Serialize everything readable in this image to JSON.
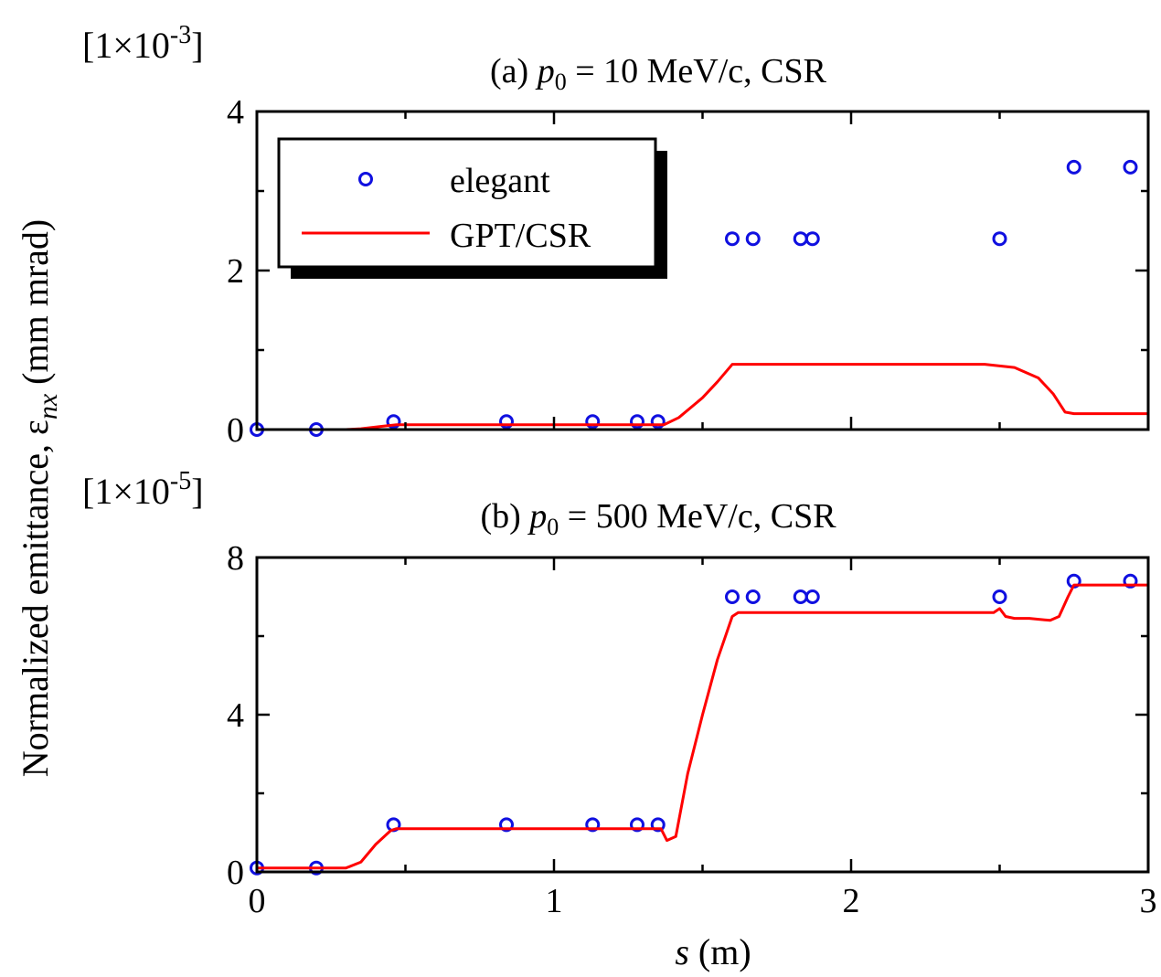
{
  "figure": {
    "ylabel_main": "Normalized emittance, ε",
    "ylabel_sub": "nx",
    "ylabel_unit": " (mm mrad)",
    "xlabel_var": "s",
    "xlabel_unit": " (m)"
  },
  "legend": {
    "elegant": "elegant",
    "gpt": "GPT/CSR"
  },
  "colors": {
    "elegant": "#1010e0",
    "gpt": "#ff0000",
    "axes": "#000000"
  },
  "panels": [
    {
      "scale_prefix": "[1×10",
      "scale_exp": "-3",
      "scale_suffix": "]",
      "title_prefix": "(a) ",
      "title_var": "p",
      "title_sub": "0",
      "title_rest": " = 10 MeV/c, CSR",
      "xticks": [
        "0",
        "1",
        "2",
        "3"
      ],
      "yticks": [
        "0",
        "2",
        "4"
      ]
    },
    {
      "scale_prefix": "[1×10",
      "scale_exp": "-5",
      "scale_suffix": "]",
      "title_prefix": "(b) ",
      "title_var": "p",
      "title_sub": "0",
      "title_rest": " = 500 MeV/c, CSR",
      "xticks": [
        "0",
        "1",
        "2",
        "3"
      ],
      "yticks": [
        "0",
        "4",
        "8"
      ]
    }
  ],
  "chart_data": [
    {
      "type": "line",
      "title": "(a) p0 = 10 MeV/c, CSR",
      "xlabel": "s (m)",
      "ylabel": "Normalized emittance, εnx (mm mrad)",
      "y_scale_factor": "1e-3",
      "xlim": [
        0,
        3
      ],
      "ylim": [
        0,
        4
      ],
      "legend_position": "top-left",
      "series": [
        {
          "name": "elegant",
          "style": "markers",
          "x": [
            0,
            0.2,
            0.46,
            0.84,
            1.13,
            1.28,
            1.35,
            1.6,
            1.67,
            1.83,
            1.87,
            2.5,
            2.75,
            2.94
          ],
          "y": [
            0.0,
            0.0,
            0.1,
            0.1,
            0.1,
            0.1,
            0.1,
            2.4,
            2.4,
            2.4,
            2.4,
            2.4,
            3.3,
            3.3
          ]
        },
        {
          "name": "GPT/CSR",
          "style": "line",
          "x": [
            0,
            0.3,
            0.35,
            0.42,
            0.47,
            1.37,
            1.42,
            1.5,
            1.55,
            1.6,
            2.45,
            2.55,
            2.63,
            2.68,
            2.72,
            2.75,
            3.0
          ],
          "y": [
            0.0,
            0.0,
            0.01,
            0.04,
            0.06,
            0.06,
            0.15,
            0.4,
            0.6,
            0.82,
            0.82,
            0.78,
            0.65,
            0.45,
            0.22,
            0.2,
            0.2
          ]
        }
      ]
    },
    {
      "type": "line",
      "title": "(b) p0 = 500 MeV/c, CSR",
      "xlabel": "s (m)",
      "ylabel": "Normalized emittance, εnx (mm mrad)",
      "y_scale_factor": "1e-5",
      "xlim": [
        0,
        3
      ],
      "ylim": [
        0,
        8
      ],
      "series": [
        {
          "name": "elegant",
          "style": "markers",
          "x": [
            0,
            0.2,
            0.46,
            0.84,
            1.13,
            1.28,
            1.35,
            1.6,
            1.67,
            1.83,
            1.87,
            2.5,
            2.75,
            2.94
          ],
          "y": [
            0.1,
            0.1,
            1.2,
            1.2,
            1.2,
            1.2,
            1.2,
            7.0,
            7.0,
            7.0,
            7.0,
            7.0,
            7.4,
            7.4
          ]
        },
        {
          "name": "GPT/CSR",
          "style": "line",
          "x": [
            0,
            0.3,
            0.35,
            0.4,
            0.45,
            0.47,
            1.36,
            1.38,
            1.41,
            1.45,
            1.5,
            1.55,
            1.6,
            1.62,
            2.48,
            2.5,
            2.52,
            2.55,
            2.6,
            2.67,
            2.7,
            2.73,
            2.75,
            3.0
          ],
          "y": [
            0.1,
            0.1,
            0.25,
            0.7,
            1.05,
            1.1,
            1.1,
            0.8,
            0.9,
            2.5,
            4.0,
            5.4,
            6.5,
            6.6,
            6.6,
            6.7,
            6.5,
            6.45,
            6.45,
            6.4,
            6.5,
            7.0,
            7.3,
            7.3
          ]
        }
      ]
    }
  ]
}
